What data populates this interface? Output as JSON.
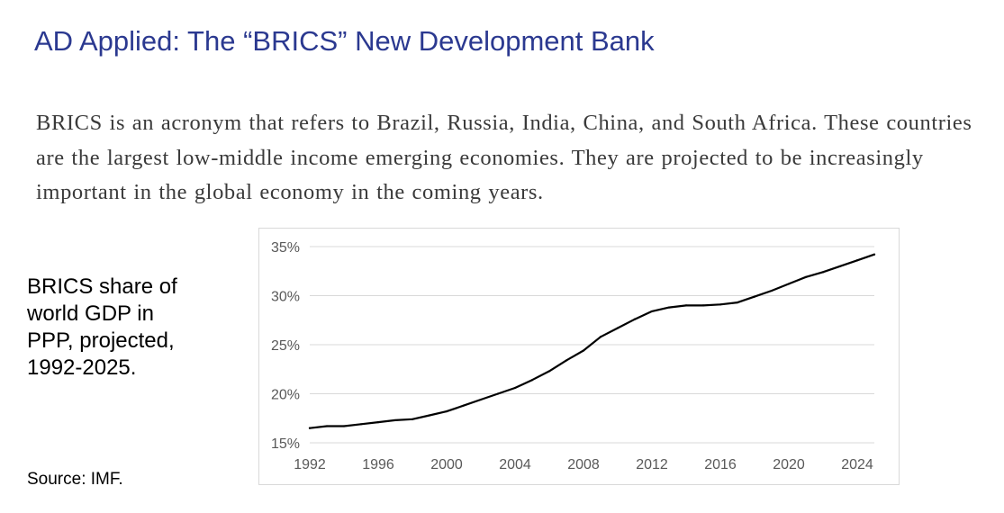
{
  "slide": {
    "title": "AD Applied: The “BRICS” New Development Bank",
    "body": "BRICS is an acronym that refers to Brazil, Russia, India, China, and South Africa. These countries are the largest low-middle income emerging economies. They are projected to be increasingly important in the global economy in the coming years.",
    "side_label": " BRICS share of\nworld GDP in\nPPP, projected,\n1992-2025.",
    "source": "Source: IMF."
  },
  "colors": {
    "title": "#2b3990",
    "line": "#000000",
    "grid": "#d9d9d9",
    "tick": "#595959"
  },
  "chart_data": {
    "type": "line",
    "title": "",
    "xlabel": "",
    "ylabel": "",
    "xlim": [
      1992,
      2025
    ],
    "ylim": [
      15,
      35
    ],
    "x_ticks": [
      1992,
      1996,
      2000,
      2004,
      2008,
      2012,
      2016,
      2020,
      2024
    ],
    "x_tick_labels": [
      "1992",
      "1996",
      "2000",
      "2004",
      "2008",
      "2012",
      "2016",
      "2020",
      "2024"
    ],
    "y_ticks": [
      15,
      20,
      25,
      30,
      35
    ],
    "y_tick_labels": [
      "15%",
      "20%",
      "25%",
      "30%",
      "35%"
    ],
    "grid": "horizontal",
    "legend": "none",
    "series": [
      {
        "x": [
          1992,
          1993,
          1994,
          1995,
          1996,
          1997,
          1998,
          1999,
          2000,
          2001,
          2002,
          2003,
          2004,
          2005,
          2006,
          2007,
          2008,
          2009,
          2010,
          2011,
          2012,
          2013,
          2014,
          2015,
          2016,
          2017,
          2018,
          2019,
          2020,
          2021,
          2022,
          2023,
          2024,
          2025
        ],
        "values": [
          16.5,
          16.7,
          16.7,
          16.9,
          17.1,
          17.3,
          17.4,
          17.8,
          18.2,
          18.8,
          19.4,
          20.0,
          20.6,
          21.4,
          22.3,
          23.4,
          24.4,
          25.8,
          26.7,
          27.6,
          28.4,
          28.8,
          29.0,
          29.0,
          29.1,
          29.3,
          29.9,
          30.5,
          31.2,
          31.9,
          32.4,
          33.0,
          33.6,
          34.2
        ]
      }
    ]
  }
}
